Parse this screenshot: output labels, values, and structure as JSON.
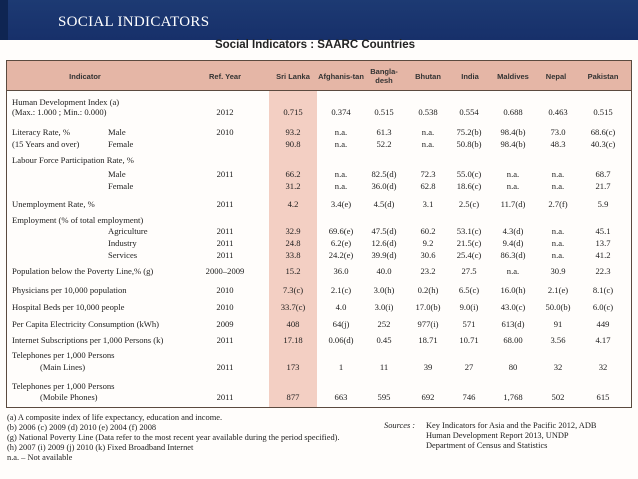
{
  "slide_title": "SOCIAL INDICATORS",
  "table_title": "Social Indicators : SAARC Countries",
  "columns": {
    "indicator": "Indicator",
    "ref_year": "Ref. Year",
    "sri_lanka": "Sri Lanka",
    "afghanistan": "Afghanis-tan",
    "bangladesh": "Bangla-desh",
    "bhutan": "Bhutan",
    "india": "India",
    "maldives": "Maldives",
    "nepal": "Nepal",
    "pakistan": "Pakistan"
  },
  "rows": [
    {
      "label": "Human Development Index (a)",
      "sub": "",
      "year": "",
      "v": [
        "",
        "",
        "",
        "",
        "",
        "",
        "",
        ""
      ]
    },
    {
      "label": "(Max.: 1.000 ; Min.: 0.000)",
      "sub": "",
      "year": "2012",
      "v": [
        "0.715",
        "0.374",
        "0.515",
        "0.538",
        "0.554",
        "0.688",
        "0.463",
        "0.515"
      ]
    },
    {
      "label": "Literacy Rate, %",
      "sub": "Male",
      "year": "2010",
      "v": [
        "93.2",
        "n.a.",
        "61.3",
        "n.a.",
        "75.2(b)",
        "98.4(b)",
        "73.0",
        "68.6(c)"
      ]
    },
    {
      "label": "(15 Years and over)",
      "sub": "Female",
      "year": "",
      "v": [
        "90.8",
        "n.a.",
        "52.2",
        "n.a.",
        "50.8(b)",
        "98.4(b)",
        "48.3",
        "40.3(c)"
      ]
    },
    {
      "label": "Labour Force Participation Rate, %",
      "sub": "",
      "year": "",
      "v": [
        "",
        "",
        "",
        "",
        "",
        "",
        "",
        ""
      ]
    },
    {
      "label": "",
      "sub": "Male",
      "year": "2011",
      "v": [
        "66.2",
        "n.a.",
        "82.5(d)",
        "72.3",
        "55.0(c)",
        "n.a.",
        "n.a.",
        "68.7"
      ]
    },
    {
      "label": "",
      "sub": "Female",
      "year": "",
      "v": [
        "31.2",
        "n.a.",
        "36.0(d)",
        "62.8",
        "18.6(c)",
        "n.a.",
        "n.a.",
        "21.7"
      ]
    },
    {
      "label": "Unemployment Rate, %",
      "sub": "",
      "year": "2011",
      "v": [
        "4.2",
        "3.4(e)",
        "4.5(d)",
        "3.1",
        "2.5(c)",
        "11.7(d)",
        "2.7(f)",
        "5.9"
      ]
    },
    {
      "label": "Employment (% of total employment)",
      "sub": "",
      "year": "",
      "v": [
        "",
        "",
        "",
        "",
        "",
        "",
        "",
        ""
      ]
    },
    {
      "label": "",
      "sub": "Agriculture",
      "year": "2011",
      "v": [
        "32.9",
        "69.6(e)",
        "47.5(d)",
        "60.2",
        "53.1(c)",
        "4.3(d)",
        "n.a.",
        "45.1"
      ]
    },
    {
      "label": "",
      "sub": "Industry",
      "year": "2011",
      "v": [
        "24.8",
        "6.2(e)",
        "12.6(d)",
        "9.2",
        "21.5(c)",
        "9.4(d)",
        "n.a.",
        "13.7"
      ]
    },
    {
      "label": "",
      "sub": "Services",
      "year": "2011",
      "v": [
        "33.8",
        "24.2(e)",
        "39.9(d)",
        "30.6",
        "25.4(c)",
        "86.3(d)",
        "n.a.",
        "41.2"
      ]
    },
    {
      "label": "Population below the Poverty Line,% (g)",
      "sub": "",
      "year": "2000–2009",
      "v": [
        "15.2",
        "36.0",
        "40.0",
        "23.2",
        "27.5",
        "n.a.",
        "30.9",
        "22.3"
      ]
    },
    {
      "label": "Physicians per 10,000 population",
      "sub": "",
      "year": "2010",
      "v": [
        "7.3(c)",
        "2.1(c)",
        "3.0(h)",
        "0.2(h)",
        "6.5(c)",
        "16.0(h)",
        "2.1(e)",
        "8.1(c)"
      ]
    },
    {
      "label": "Hospital Beds per 10,000 people",
      "sub": "",
      "year": "2010",
      "v": [
        "33.7(c)",
        "4.0",
        "3.0(i)",
        "17.0(b)",
        "9.0(i)",
        "43.0(c)",
        "50.0(b)",
        "6.0(c)"
      ]
    },
    {
      "label": "Per Capita Electricity Consumption (kWh)",
      "sub": "",
      "year": "2009",
      "v": [
        "408",
        "64(j)",
        "252",
        "977(i)",
        "571",
        "613(d)",
        "91",
        "449"
      ]
    },
    {
      "label": "Internet Subscriptions per 1,000 Persons (k)",
      "sub": "",
      "year": "2011",
      "v": [
        "17.18",
        "0.06(d)",
        "0.45",
        "18.71",
        "10.71",
        "68.00",
        "3.56",
        "4.17"
      ]
    },
    {
      "label": "Telephones per 1,000 Persons",
      "sub": "",
      "year": "",
      "v": [
        "",
        "",
        "",
        "",
        "",
        "",
        "",
        ""
      ]
    },
    {
      "label": "(Main Lines)",
      "sub": "",
      "year": "2011",
      "v": [
        "173",
        "1",
        "11",
        "39",
        "27",
        "80",
        "32",
        "32"
      ]
    },
    {
      "label": "Telephones per 1,000 Persons",
      "sub": "",
      "year": "",
      "v": [
        "",
        "",
        "",
        "",
        "",
        "",
        "",
        ""
      ]
    },
    {
      "label": "(Mobile Phones)",
      "sub": "",
      "year": "2011",
      "v": [
        "877",
        "663",
        "595",
        "692",
        "746",
        "1,768",
        "502",
        "615"
      ]
    }
  ],
  "notes": {
    "a": "(a) A composite index of life expectancy, education and income.",
    "b": "(b)  2006      (c) 2009       (d) 2010       (e) 2004      (f) 2008",
    "g": "(g) National Poverty Line (Data refer to the most recent year available during the period specified).",
    "h": "(h)  2007      (i) 2009       (j) 2010       (k) Fixed Broadband Internet",
    "na": "n.a. – Not available",
    "sources_label": "Sources :",
    "src1": "Key Indicators for Asia and the Pacific 2012, ADB",
    "src2": "Human Development Report 2013, UNDP",
    "src3": "Department of Census and Statistics"
  }
}
